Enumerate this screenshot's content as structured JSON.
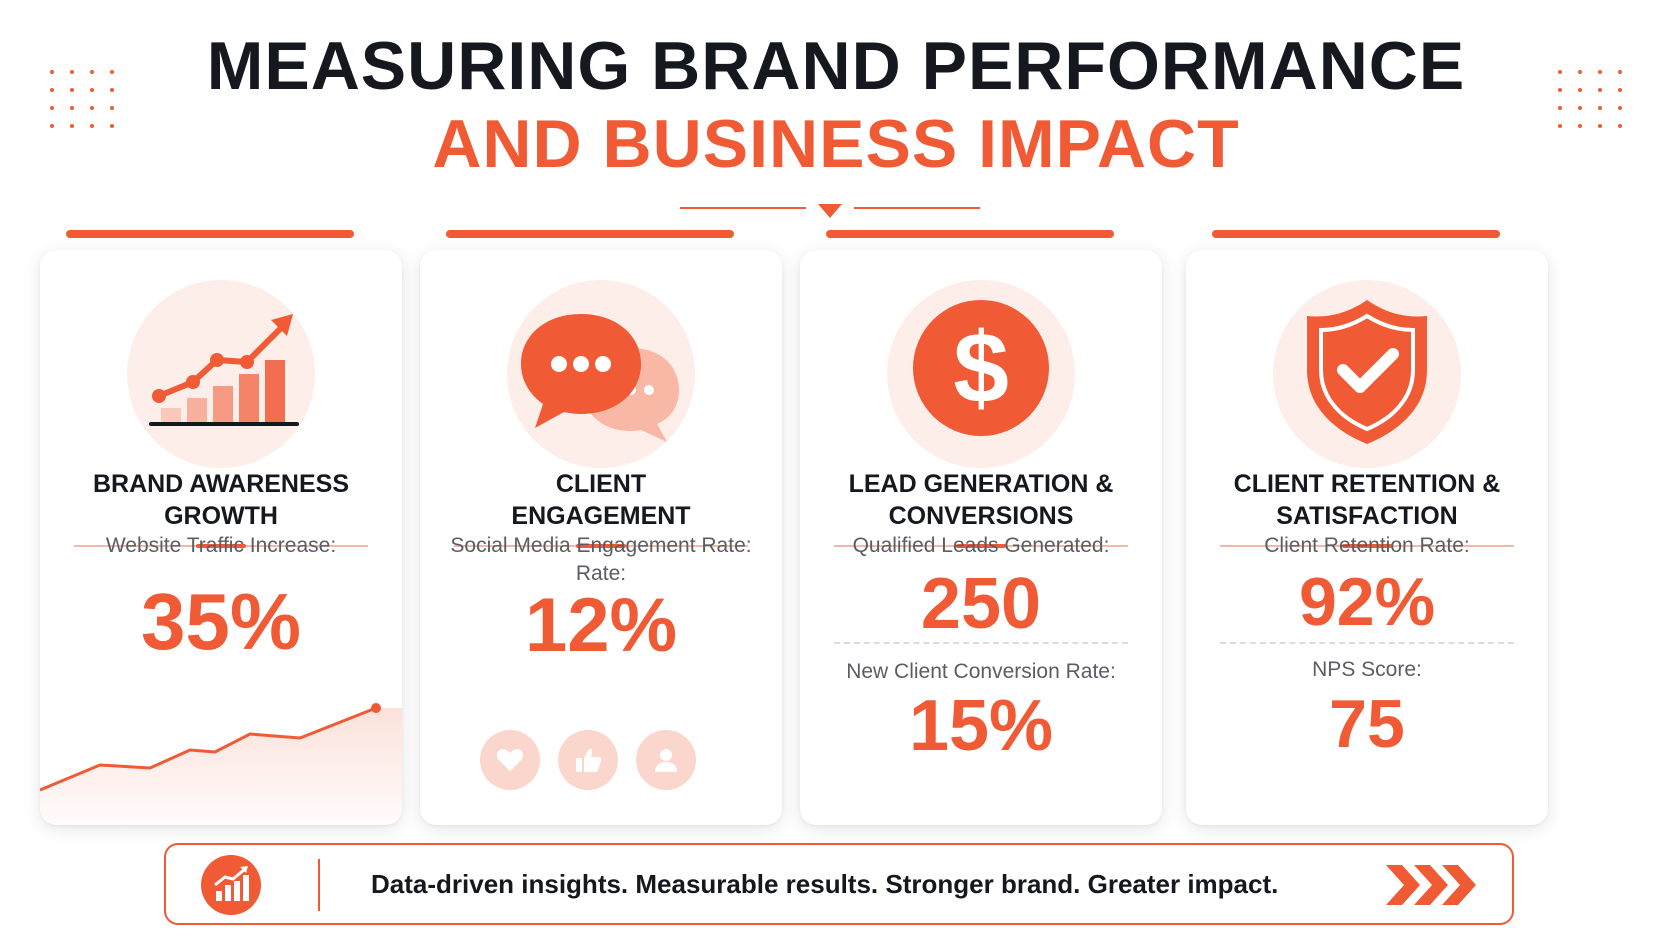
{
  "title": {
    "line1": "MEASURING BRAND PERFORMANCE",
    "line2": "AND BUSINESS IMPACT"
  },
  "colors": {
    "accent": "#f05a35",
    "text": "#15181f",
    "muted": "#5a5d63",
    "tint": "#fdeee9"
  },
  "cards": [
    {
      "icon": "growth-chart-icon",
      "title_line1": "BRAND AWARENESS",
      "title_line2": "GROWTH",
      "metric_label": "Website Traffic Increase:",
      "metric_value": "35%"
    },
    {
      "icon": "chat-bubbles-icon",
      "title_line1": "CLIENT",
      "title_line2": "ENGAGEMENT",
      "metric_label_line1": "Social Media Engagement Rate:",
      "metric_label_line2": "Rate:",
      "metric_value": "12%",
      "reaction_icons": [
        "heart-icon",
        "thumbs-up-icon",
        "user-icon"
      ]
    },
    {
      "icon": "dollar-icon",
      "title_line1": "LEAD GENERATION &",
      "title_line2": "CONVERSIONS",
      "metric_label": "Qualified Leads Generated:",
      "metric_value": "250",
      "metric2_label": "New Client Conversion Rate:",
      "metric2_value": "15%"
    },
    {
      "icon": "shield-check-icon",
      "title_line1": "CLIENT RETENTION &",
      "title_line2": "SATISFACTION",
      "metric_label": "Client Retention Rate:",
      "metric_value": "92%",
      "metric2_label": "NPS Score:",
      "metric2_value": "75"
    }
  ],
  "footer": {
    "icon": "bar-chart-growth-icon",
    "text": "Data-driven insights. Measurable results. Stronger brand. Greater impact.",
    "end_icon": "chevrons-right-icon"
  }
}
